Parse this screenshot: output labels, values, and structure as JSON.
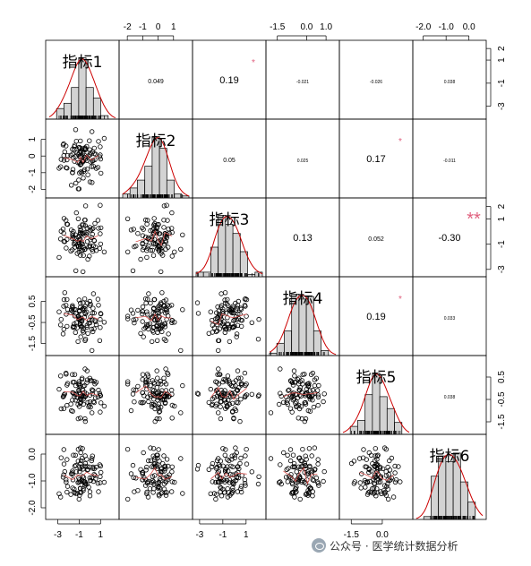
{
  "chart_data": {
    "type": "scatter-matrix",
    "variables": [
      "指标1",
      "指标2",
      "指标3",
      "指标4",
      "指标5",
      "指标6"
    ],
    "ranges": [
      [
        -3.8,
        2.4
      ],
      [
        -2.3,
        2.0
      ],
      [
        -3.3,
        2.4
      ],
      [
        -1.9,
        1.5
      ],
      [
        -1.9,
        1.3
      ],
      [
        -2.3,
        0.6
      ]
    ],
    "correlations": [
      {
        "i": 0,
        "j": 1,
        "label": "0.049",
        "stars": ""
      },
      {
        "i": 0,
        "j": 2,
        "label": "0.19",
        "stars": "*"
      },
      {
        "i": 0,
        "j": 3,
        "label": "-0.021",
        "stars": ""
      },
      {
        "i": 0,
        "j": 4,
        "label": "-0.026",
        "stars": ""
      },
      {
        "i": 0,
        "j": 5,
        "label": "0.038",
        "stars": ""
      },
      {
        "i": 1,
        "j": 2,
        "label": "0.05",
        "stars": ""
      },
      {
        "i": 1,
        "j": 3,
        "label": "0.025",
        "stars": ""
      },
      {
        "i": 1,
        "j": 4,
        "label": "0.17",
        "stars": "*"
      },
      {
        "i": 1,
        "j": 5,
        "label": "-0.011",
        "stars": ""
      },
      {
        "i": 2,
        "j": 3,
        "label": "0.13",
        "stars": ""
      },
      {
        "i": 2,
        "j": 4,
        "label": "0.052",
        "stars": ""
      },
      {
        "i": 2,
        "j": 5,
        "label": "-0.30",
        "stars": "**"
      },
      {
        "i": 3,
        "j": 4,
        "label": "0.19",
        "stars": "*"
      },
      {
        "i": 3,
        "j": 5,
        "label": "0.033",
        "stars": ""
      },
      {
        "i": 4,
        "j": 5,
        "label": "0.038",
        "stars": ""
      }
    ],
    "axes": {
      "top": [
        {
          "col": 1,
          "ticks": [
            -2,
            -1,
            0,
            1
          ]
        },
        {
          "col": 3,
          "ticks": [
            -1.5,
            0.0,
            1.0
          ]
        },
        {
          "col": 5,
          "ticks": [
            -2.0,
            -1.0,
            0.0
          ]
        }
      ],
      "bottom": [
        {
          "col": 0,
          "ticks": [
            -3,
            -1,
            1
          ]
        },
        {
          "col": 2,
          "ticks": [
            -3,
            -1,
            1
          ]
        },
        {
          "col": 4,
          "ticks": [
            -1.5,
            0.0
          ]
        }
      ],
      "left": [
        {
          "row": 1,
          "ticks": [
            -2,
            -1,
            0,
            1
          ]
        },
        {
          "row": 3,
          "ticks": [
            -1.5,
            -0.5,
            0.5
          ]
        },
        {
          "row": 5,
          "ticks": [
            -2.0,
            -1.0,
            0.0
          ]
        }
      ],
      "right": [
        {
          "row": 0,
          "ticks": [
            -3,
            -1,
            1,
            2
          ]
        },
        {
          "row": 2,
          "ticks": [
            -3,
            -1,
            1,
            2
          ]
        },
        {
          "row": 4,
          "ticks": [
            -1.5,
            -0.5,
            0.5
          ]
        }
      ]
    },
    "tick_labels": {
      "top": [
        [
          "-2",
          "-1",
          "0",
          "1"
        ],
        [
          "-1.5",
          "0.0",
          "1.0"
        ],
        [
          "-2.0",
          "-1.0",
          "0.0"
        ]
      ],
      "bottom": [
        [
          "-3",
          "-1",
          "1"
        ],
        [
          "-3",
          "-1",
          "1"
        ],
        [
          "-1.5",
          "0.0"
        ]
      ],
      "left": [
        [
          "-2",
          "-1",
          "0",
          "1"
        ],
        [
          "-1.5",
          "-0.5",
          "0.5"
        ],
        [
          "-2.0",
          "-1.0",
          "0.0"
        ]
      ],
      "right": [
        [
          "-3",
          "-1",
          "1",
          "2"
        ],
        [
          "-3",
          "-1",
          "1",
          "2"
        ],
        [
          "-1.5",
          "-0.5",
          "0.5"
        ]
      ]
    },
    "n_points": 100,
    "colors": {
      "points": "#000000",
      "smooth": "#d9534f",
      "density": "#cc0000",
      "hist": "#d3d3d3",
      "stars": "#e0607e"
    }
  },
  "watermark": {
    "text": "公众号 · 医学统计数据分析"
  }
}
